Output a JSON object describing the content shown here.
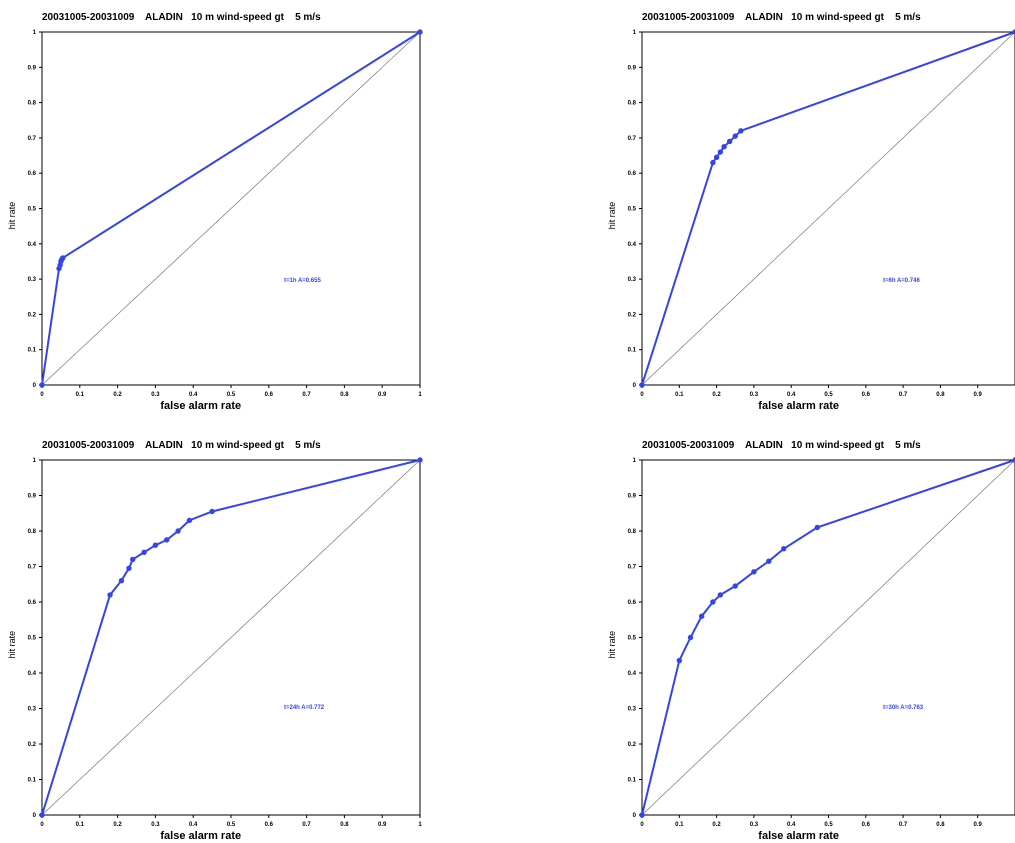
{
  "chart_data": [
    {
      "type": "line",
      "title": "20031005-20031009    ALADIN   10 m wind-speed gt    5 m/s",
      "xlabel": "false alarm rate",
      "ylabel": "hit rate",
      "xlim": [
        0,
        1
      ],
      "ylim": [
        0,
        1
      ],
      "x_ticks": [
        "0",
        "0.1",
        "0.2",
        "0.3",
        "0.4",
        "0.5",
        "0.6",
        "0.7",
        "0.8",
        "0.9",
        "1"
      ],
      "y_ticks": [
        "0",
        "0.1",
        "0.2",
        "0.3",
        "0.4",
        "0.5",
        "0.6",
        "0.7",
        "0.8",
        "0.9",
        "1"
      ],
      "grid": false,
      "diagonal_reference": true,
      "annotation": "t=1h  A=0.655",
      "series": [
        {
          "color": "#3344ee",
          "x": [
            0,
            0.045,
            0.048,
            0.05,
            0.052,
            0.055,
            1
          ],
          "y": [
            0,
            0.33,
            0.34,
            0.35,
            0.355,
            0.36,
            1
          ]
        }
      ]
    },
    {
      "type": "line",
      "title": "20031005-20031009    ALADIN   10 m wind-speed gt    5 m/s",
      "xlabel": "false alarm rate",
      "ylabel": "hit rate",
      "xlim": [
        0,
        1
      ],
      "ylim": [
        0,
        1
      ],
      "x_ticks": [
        "0",
        "0.1",
        "0.2",
        "0.3",
        "0.4",
        "0.5",
        "0.6",
        "0.7",
        "0.8",
        "0.9"
      ],
      "y_ticks": [
        "0",
        "0.1",
        "0.2",
        "0.3",
        "0.4",
        "0.5",
        "0.6",
        "0.7",
        "0.8",
        "0.9",
        "1"
      ],
      "grid": false,
      "diagonal_reference": true,
      "annotation": "t=6h  A=0.746",
      "series": [
        {
          "color": "#3344ee",
          "x": [
            0,
            0.19,
            0.2,
            0.21,
            0.22,
            0.235,
            0.25,
            0.265,
            1
          ],
          "y": [
            0,
            0.63,
            0.645,
            0.66,
            0.675,
            0.69,
            0.705,
            0.72,
            1
          ]
        }
      ]
    },
    {
      "type": "line",
      "title": "20031005-20031009    ALADIN   10 m wind-speed gt    5 m/s",
      "xlabel": "false alarm rate",
      "ylabel": "hit rate",
      "xlim": [
        0,
        1
      ],
      "ylim": [
        0,
        1
      ],
      "x_ticks": [
        "0",
        "0.1",
        "0.2",
        "0.3",
        "0.4",
        "0.5",
        "0.6",
        "0.7",
        "0.8",
        "0.9",
        "1"
      ],
      "y_ticks": [
        "0",
        "0.1",
        "0.2",
        "0.3",
        "0.4",
        "0.5",
        "0.6",
        "0.7",
        "0.8",
        "0.9",
        "1"
      ],
      "grid": false,
      "diagonal_reference": true,
      "annotation": "t=24h  A=0.772",
      "series": [
        {
          "color": "#3344ee",
          "x": [
            0,
            0.18,
            0.21,
            0.23,
            0.24,
            0.27,
            0.3,
            0.33,
            0.36,
            0.39,
            0.45,
            1
          ],
          "y": [
            0,
            0.62,
            0.66,
            0.695,
            0.72,
            0.74,
            0.76,
            0.775,
            0.8,
            0.83,
            0.855,
            1
          ]
        }
      ]
    },
    {
      "type": "line",
      "title": "20031005-20031009    ALADIN   10 m wind-speed gt    5 m/s",
      "xlabel": "false alarm rate",
      "ylabel": "hit rate",
      "xlim": [
        0,
        1
      ],
      "ylim": [
        0,
        1
      ],
      "x_ticks": [
        "0",
        "0.1",
        "0.2",
        "0.3",
        "0.4",
        "0.5",
        "0.6",
        "0.7",
        "0.8",
        "0.9"
      ],
      "y_ticks": [
        "0",
        "0.1",
        "0.2",
        "0.3",
        "0.4",
        "0.5",
        "0.6",
        "0.7",
        "0.8",
        "0.9",
        "1"
      ],
      "grid": false,
      "diagonal_reference": true,
      "annotation": "t=30h  A=0.763",
      "series": [
        {
          "color": "#3344ee",
          "x": [
            0,
            0.1,
            0.13,
            0.16,
            0.19,
            0.21,
            0.25,
            0.3,
            0.34,
            0.38,
            0.47,
            1
          ],
          "y": [
            0,
            0.435,
            0.5,
            0.56,
            0.6,
            0.62,
            0.645,
            0.685,
            0.715,
            0.75,
            0.81,
            1
          ]
        }
      ]
    }
  ]
}
